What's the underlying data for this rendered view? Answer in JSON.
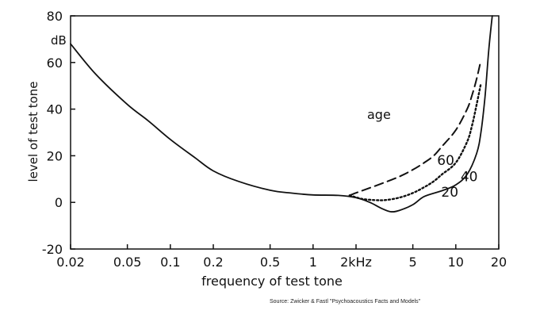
{
  "source_note": "Source: Zwicker & Fastl \"Psychoacoustics Facts and Models\"",
  "chart_data": {
    "type": "line",
    "xscale": "log",
    "xlim": [
      0.02,
      20
    ],
    "ylim": [
      -20,
      80
    ],
    "xlabel": "frequency of test tone",
    "ylabel": "level of test tone",
    "y_unit": "dB",
    "xticks": [
      {
        "value": 0.02,
        "label": "0.02"
      },
      {
        "value": 0.05,
        "label": "0.05"
      },
      {
        "value": 0.1,
        "label": "0.1"
      },
      {
        "value": 0.2,
        "label": "0.2"
      },
      {
        "value": 0.5,
        "label": "0.5"
      },
      {
        "value": 1,
        "label": "1"
      },
      {
        "value": 2,
        "label": "2kHz"
      },
      {
        "value": 5,
        "label": "5"
      },
      {
        "value": 10,
        "label": "10"
      },
      {
        "value": 20,
        "label": "20"
      }
    ],
    "yticks": [
      {
        "value": -20,
        "label": "-20"
      },
      {
        "value": 0,
        "label": "0"
      },
      {
        "value": 20,
        "label": "20"
      },
      {
        "value": 40,
        "label": "40"
      },
      {
        "value": 60,
        "label": "60"
      },
      {
        "value": 80,
        "label": "80"
      }
    ],
    "legend_title": "age",
    "series": [
      {
        "name": "20",
        "style": "solid",
        "label_pos": [
          7.9,
          2.5
        ],
        "x": [
          0.02,
          0.03,
          0.05,
          0.07,
          0.1,
          0.15,
          0.2,
          0.3,
          0.5,
          0.7,
          1.0,
          1.5,
          2.0,
          2.5,
          3.0,
          3.5,
          4.0,
          5.0,
          6.0,
          8.0,
          10.0,
          12.0,
          14.0,
          15.0,
          16.0,
          17.0,
          18.0
        ],
        "y": [
          68,
          55,
          42,
          35,
          27,
          19,
          13.5,
          9,
          5.2,
          4,
          3.2,
          3,
          2,
          0,
          -2.5,
          -4,
          -3.5,
          -1,
          2.5,
          5,
          7.5,
          12,
          21,
          30,
          45,
          65,
          80
        ]
      },
      {
        "name": "40",
        "style": "dotted",
        "label_pos": [
          10.8,
          9
        ],
        "x": [
          1.8,
          2.2,
          2.7,
          3.2,
          4.0,
          5.0,
          6.0,
          7.0,
          8.0,
          10.0,
          12.0,
          13.0,
          14.0,
          15.0
        ],
        "y": [
          3,
          1.5,
          1,
          1,
          2,
          4,
          6.5,
          9,
          12,
          17,
          26,
          33,
          42,
          51
        ]
      },
      {
        "name": "60",
        "style": "dashed",
        "label_pos": [
          7.4,
          16
        ],
        "x": [
          1.8,
          2.2,
          3.0,
          4.0,
          5.0,
          6.0,
          7.0,
          8.0,
          10.0,
          12.0,
          13.0,
          14.0,
          15.0
        ],
        "y": [
          3,
          5,
          8,
          11,
          14,
          17,
          20,
          24,
          31,
          40,
          46,
          53,
          61
        ]
      }
    ]
  }
}
